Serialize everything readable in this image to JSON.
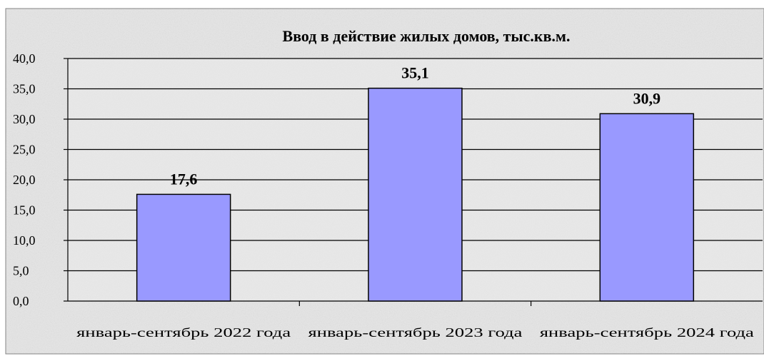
{
  "chart_data": {
    "type": "bar",
    "title": "Ввод в действие жилых домов, тыс.кв.м.",
    "categories": [
      "январь-сентябрь 2022 года",
      "январь-сентябрь 2023 года",
      "январь-сентябрь 2024 года"
    ],
    "values": [
      17.6,
      35.1,
      30.9
    ],
    "value_labels": [
      "17,6",
      "35,1",
      "30,9"
    ],
    "ylim": [
      0,
      40
    ],
    "yticks": [
      0,
      5,
      10,
      15,
      20,
      25,
      30,
      35,
      40
    ],
    "ytick_labels": [
      "0,0",
      "5,0",
      "10,0",
      "15,0",
      "20,0",
      "25,0",
      "30,0",
      "35,0",
      "40,0"
    ],
    "grid": true,
    "legend": "none",
    "colors": {
      "bar_fill": "#9999ff",
      "bar_stroke": "#000000",
      "gridline": "#000000",
      "plot_background": "#ebebeb",
      "frame_background": "#e6e6e6"
    }
  }
}
